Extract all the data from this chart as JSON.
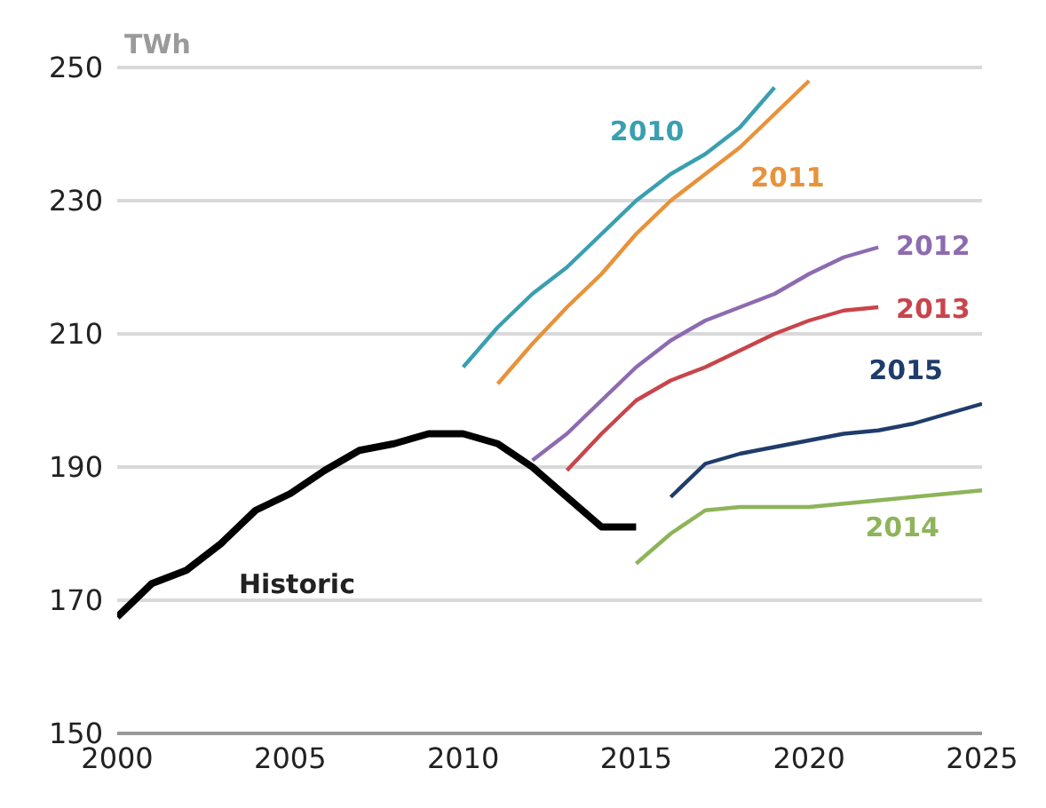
{
  "chart_data": {
    "type": "line",
    "ylabel": "TWh",
    "xlim": [
      2000,
      2025
    ],
    "xticks": [
      2000,
      2005,
      2010,
      2015,
      2020,
      2025
    ],
    "ylim": [
      150,
      250
    ],
    "yticks": [
      150,
      170,
      190,
      210,
      230,
      250
    ],
    "grid": "y",
    "line_style": "solid",
    "series": [
      {
        "name": "Historic",
        "color": "#000000",
        "x": [
          2000,
          2001,
          2002,
          2003,
          2004,
          2005,
          2006,
          2007,
          2008,
          2009,
          2010,
          2011,
          2012,
          2013,
          2014,
          2015
        ],
        "values": [
          167.5,
          172.5,
          174.5,
          178.5,
          183.5,
          186,
          189.5,
          192.5,
          193.5,
          195,
          195,
          193.5,
          190,
          185.5,
          181,
          181
        ]
      },
      {
        "name": "2010",
        "color": "#3a9fb0",
        "x": [
          2010,
          2011,
          2012,
          2013,
          2014,
          2015,
          2016,
          2017,
          2018,
          2019
        ],
        "values": [
          205,
          211,
          216,
          220,
          225,
          230,
          234,
          237,
          241,
          247
        ]
      },
      {
        "name": "2011",
        "color": "#e8923a",
        "x": [
          2011,
          2012,
          2013,
          2014,
          2015,
          2016,
          2017,
          2018,
          2019,
          2020
        ],
        "values": [
          202.5,
          208.5,
          214,
          219,
          225,
          230,
          234,
          238,
          243,
          248
        ]
      },
      {
        "name": "2012",
        "color": "#8d6bb0",
        "x": [
          2012,
          2013,
          2014,
          2015,
          2016,
          2017,
          2018,
          2019,
          2020,
          2021,
          2022
        ],
        "values": [
          191,
          195,
          200,
          205,
          209,
          212,
          214,
          216,
          219,
          221.5,
          223
        ]
      },
      {
        "name": "2013",
        "color": "#c8454b",
        "x": [
          2013,
          2014,
          2015,
          2016,
          2017,
          2018,
          2019,
          2020,
          2021,
          2022
        ],
        "values": [
          189.5,
          195,
          200,
          203,
          205,
          207.5,
          210,
          212,
          213.5,
          214
        ]
      },
      {
        "name": "2015",
        "color": "#1f3c6b",
        "x": [
          2016,
          2017,
          2018,
          2019,
          2020,
          2021,
          2022,
          2023,
          2024,
          2025
        ],
        "values": [
          185.5,
          190.5,
          192,
          193,
          194,
          195,
          195.5,
          196.5,
          198,
          199.5
        ]
      },
      {
        "name": "2014",
        "color": "#8db45a",
        "x": [
          2015,
          2016,
          2017,
          2018,
          2019,
          2020,
          2021,
          2022,
          2023,
          2024,
          2025
        ],
        "values": [
          175.5,
          180,
          183.5,
          184,
          184,
          184,
          184.5,
          185,
          185.5,
          186,
          186.5
        ]
      }
    ]
  }
}
